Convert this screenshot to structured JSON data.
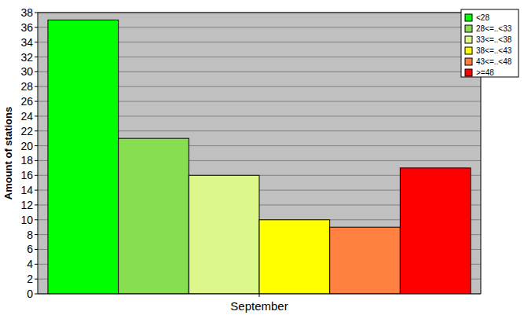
{
  "chart_data": {
    "type": "bar",
    "y_label": "Amount of stations",
    "categories": [
      "September"
    ],
    "series": [
      {
        "name": "<28",
        "color": "#00ff00",
        "values": [
          37
        ]
      },
      {
        "name": "28<=..<33",
        "color": "#88dd50",
        "values": [
          21
        ]
      },
      {
        "name": "33<=..<38",
        "color": "#ddf88a",
        "values": [
          16
        ]
      },
      {
        "name": "38<=..<43",
        "color": "#ffff00",
        "values": [
          10
        ]
      },
      {
        "name": "43<=..<48",
        "color": "#ff8040",
        "values": [
          9
        ]
      },
      {
        "name": ">=48",
        "color": "#ff0000",
        "values": [
          17
        ]
      }
    ],
    "ylim": [
      0,
      38
    ],
    "yticks": [
      0,
      2,
      4,
      6,
      8,
      10,
      12,
      14,
      16,
      18,
      20,
      22,
      24,
      26,
      28,
      30,
      32,
      34,
      36,
      38
    ],
    "grid": true,
    "legend": "top-right"
  }
}
